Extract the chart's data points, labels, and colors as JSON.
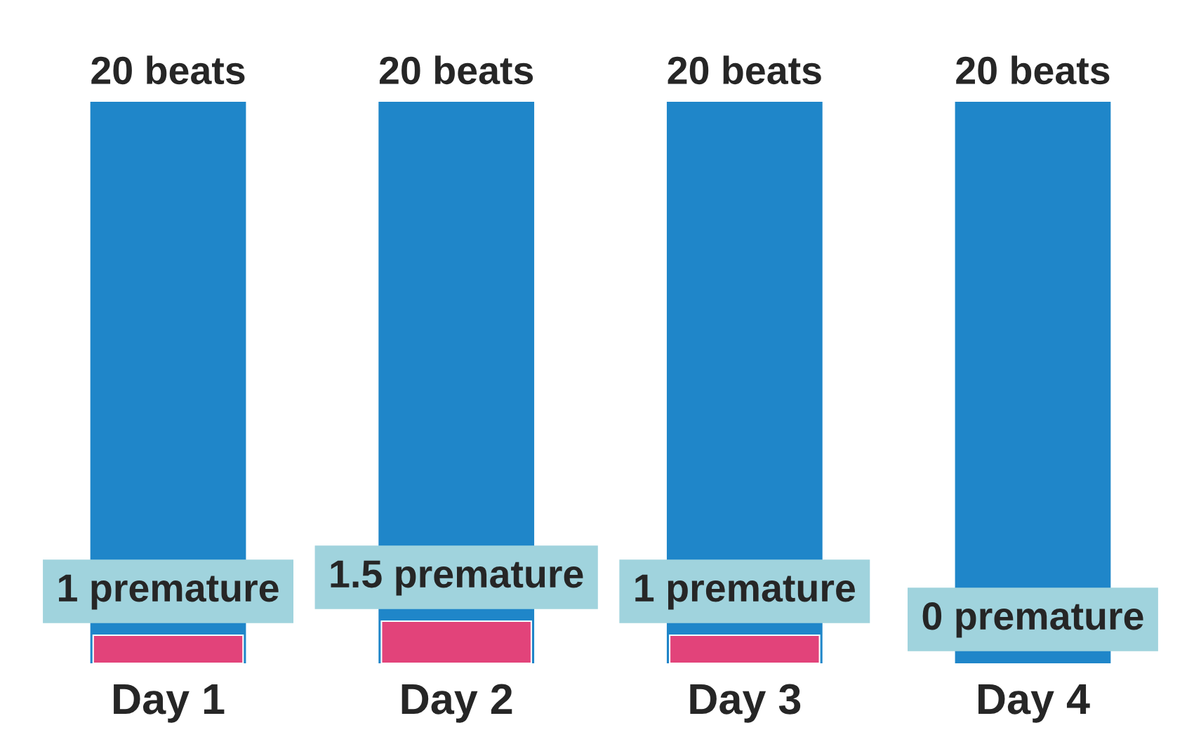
{
  "chart_data": {
    "type": "bar",
    "categories": [
      "Day 1",
      "Day 2",
      "Day 3",
      "Day 4"
    ],
    "series": [
      {
        "color": "#1f86c9",
        "values": [
          20,
          20,
          20,
          20
        ],
        "value_labels": [
          "20 beats",
          "20 beats",
          "20 beats",
          "20 beats"
        ]
      },
      {
        "color": "#e2437a",
        "values": [
          1,
          1.5,
          1,
          0
        ],
        "value_labels": [
          "1 premature",
          "1.5 premature",
          "1 premature",
          "0 premature"
        ]
      }
    ],
    "grid": false,
    "legend": false,
    "tick_labels": "x"
  }
}
